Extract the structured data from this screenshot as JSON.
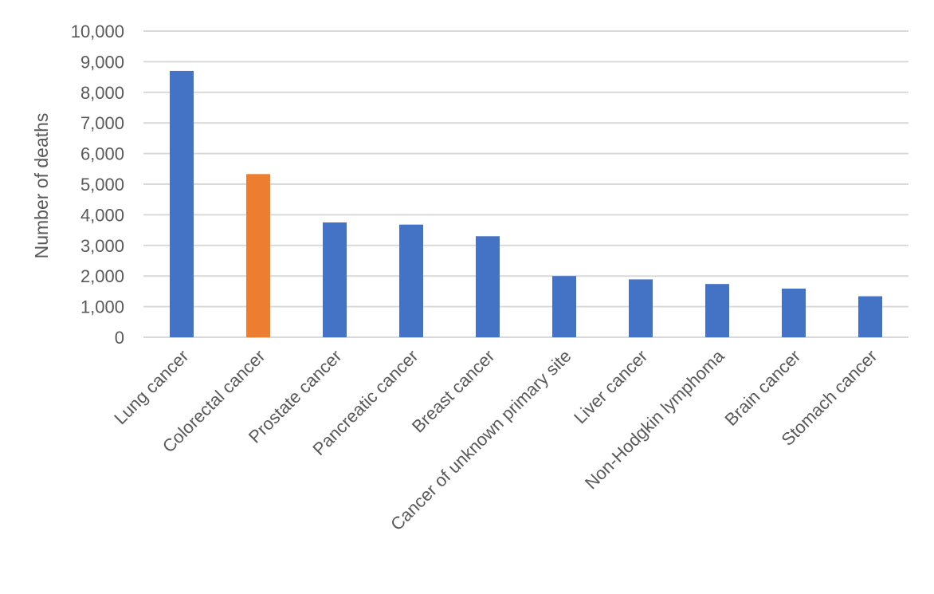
{
  "chart_data": {
    "type": "bar",
    "title": "",
    "xlabel": "",
    "ylabel": "Number of deaths",
    "ylim": [
      0,
      10000
    ],
    "yticks": [
      0,
      1000,
      2000,
      3000,
      4000,
      5000,
      6000,
      7000,
      8000,
      9000,
      10000
    ],
    "ytick_labels": [
      "0",
      "1,000",
      "2,000",
      "3,000",
      "4,000",
      "5,000",
      "6,000",
      "7,000",
      "8,000",
      "9,000",
      "10,000"
    ],
    "grid": true,
    "legend": "none",
    "categories": [
      "Lung cancer",
      "Colorectal cancer",
      "Prostate cancer",
      "Pancreatic cancer",
      "Breast cancer",
      "Cancer of unknown primary site",
      "Liver cancer",
      "Non-Hodgkin lymphoma",
      "Brain cancer",
      "Stomach cancer"
    ],
    "values": [
      8700,
      5330,
      3750,
      3680,
      3300,
      2000,
      1890,
      1740,
      1590,
      1340
    ],
    "bar_colors": [
      "#4472c4",
      "#ed7d31",
      "#4472c4",
      "#4472c4",
      "#4472c4",
      "#4472c4",
      "#4472c4",
      "#4472c4",
      "#4472c4",
      "#4472c4"
    ]
  }
}
